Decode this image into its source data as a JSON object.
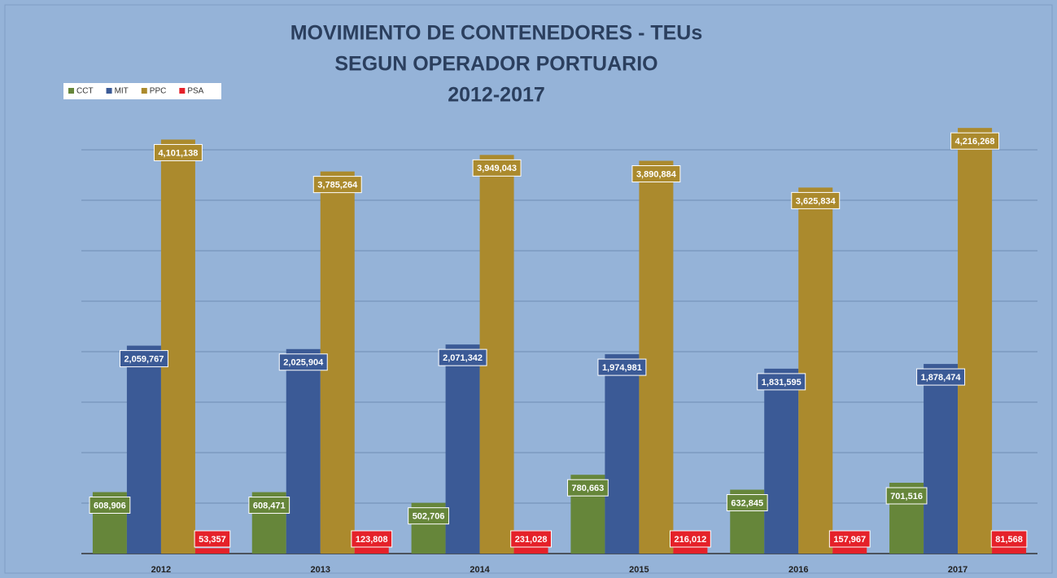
{
  "chart_data": {
    "type": "bar",
    "title": [
      "MOVIMIENTO DE CONTENEDORES - TEUs",
      "SEGUN OPERADOR PORTUARIO",
      "2012-2017"
    ],
    "categories": [
      "2012",
      "2013",
      "2014",
      "2015",
      "2016",
      "2017"
    ],
    "series": [
      {
        "name": "CCT",
        "color": "#66863a",
        "values": [
          608906,
          608471,
          502706,
          780663,
          632845,
          701516
        ],
        "value_labels": [
          "608,906",
          "608,471",
          "502,706",
          "780,663",
          "632,845",
          "701,516"
        ]
      },
      {
        "name": "MIT",
        "color": "#3b5a96",
        "values": [
          2059767,
          2025904,
          2071342,
          1974981,
          1831595,
          1878474
        ],
        "value_labels": [
          "2,059,767",
          "2,025,904",
          "2,071,342",
          "1,974,981",
          "1,831,595",
          "1,878,474"
        ]
      },
      {
        "name": "PPC",
        "color": "#ab8a2d",
        "values": [
          4101138,
          3785264,
          3949043,
          3890884,
          3625834,
          4216268
        ],
        "value_labels": [
          "4,101,138",
          "3,785,264",
          "3,949,043",
          "3,890,884",
          "3,625,834",
          "4,216,268"
        ]
      },
      {
        "name": "PSA",
        "color": "#e52129",
        "values": [
          53357,
          123808,
          231028,
          216012,
          157967,
          81568
        ],
        "value_labels": [
          "53,357",
          "123,808",
          "231,028",
          "216,012",
          "157,967",
          "81,568"
        ]
      }
    ],
    "ylim": [
      0,
      4500000
    ],
    "yticks": [
      0,
      500000,
      1000000,
      1500000,
      2000000,
      2500000,
      3000000,
      3500000,
      4000000
    ],
    "grid": true,
    "legend": "top-left"
  }
}
